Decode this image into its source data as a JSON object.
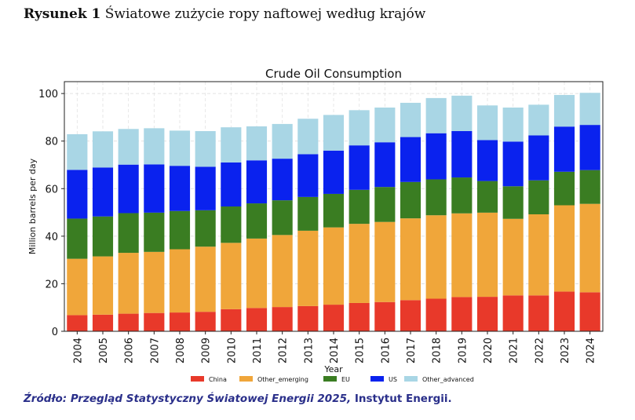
{
  "figure": {
    "label": "Rysunek 1",
    "title": "Światowe zużycie ropy naftowej według krajów"
  },
  "source": {
    "prefix": "Źródło: Przegląd Statystyczny Światowej Energii 2025,",
    "suffix": "Instytut Energii."
  },
  "chart_data": {
    "type": "bar",
    "stacked": true,
    "title": "Crude Oil Consumption",
    "xlabel": "Year",
    "ylabel": "Million barrels per day",
    "ylim": [
      0,
      105
    ],
    "yticks": [
      0,
      20,
      40,
      60,
      80,
      100
    ],
    "grid": true,
    "legend_position": "bottom",
    "categories": [
      "2004",
      "2005",
      "2006",
      "2007",
      "2008",
      "2009",
      "2010",
      "2011",
      "2012",
      "2013",
      "2014",
      "2015",
      "2016",
      "2017",
      "2018",
      "2019",
      "2020",
      "2021",
      "2022",
      "2023",
      "2024"
    ],
    "series": [
      {
        "name": "China",
        "color": "#e8392a",
        "values": [
          6.8,
          7.0,
          7.4,
          7.7,
          7.9,
          8.2,
          9.3,
          9.8,
          10.2,
          10.6,
          11.2,
          11.9,
          12.3,
          13.1,
          13.7,
          14.4,
          14.5,
          15.1,
          15.1,
          16.7,
          16.4
        ]
      },
      {
        "name": "Other_emerging",
        "color": "#f0a63a",
        "values": [
          23.7,
          24.5,
          25.6,
          25.7,
          26.6,
          27.4,
          27.9,
          29.2,
          30.3,
          31.7,
          32.5,
          33.3,
          33.7,
          34.4,
          35.1,
          35.2,
          35.4,
          32.2,
          34.1,
          36.3,
          37.2
        ]
      },
      {
        "name": "EU",
        "color": "#3a7d22",
        "values": [
          16.9,
          16.8,
          16.7,
          16.5,
          16.1,
          15.3,
          15.3,
          14.8,
          14.6,
          14.2,
          14.1,
          14.3,
          14.7,
          15.3,
          15.1,
          15.1,
          13.3,
          13.7,
          14.3,
          14.1,
          14.2
        ]
      },
      {
        "name": "US",
        "color": "#0a22ee",
        "values": [
          20.5,
          20.6,
          20.4,
          20.3,
          19.0,
          18.3,
          18.5,
          18.1,
          17.5,
          18.0,
          18.2,
          18.7,
          18.8,
          18.9,
          19.4,
          19.5,
          17.2,
          18.8,
          18.9,
          19.0,
          19.0
        ]
      },
      {
        "name": "Other_advanced",
        "color": "#a9d6e5",
        "values": [
          15.0,
          15.2,
          15.0,
          15.2,
          14.8,
          15.0,
          14.8,
          14.3,
          14.6,
          14.9,
          15.0,
          14.8,
          14.6,
          14.4,
          14.8,
          14.9,
          14.6,
          14.3,
          12.9,
          13.3,
          13.5
        ]
      }
    ]
  }
}
